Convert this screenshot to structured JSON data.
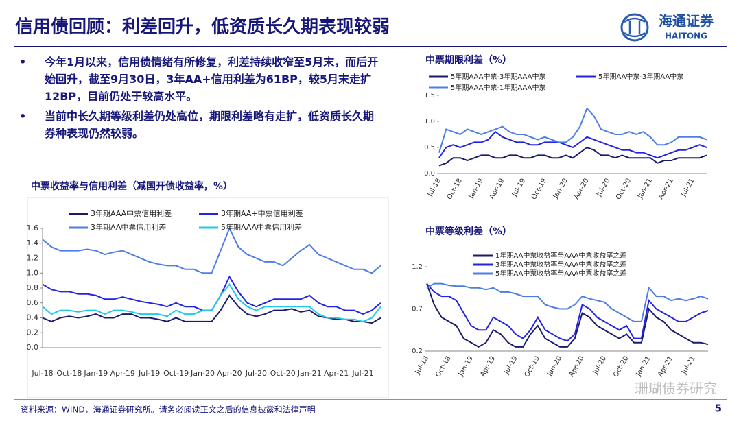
{
  "header": {
    "title": "信用债回顾：利差回升，低资质长久期表现较弱",
    "logo_cn": "海通证券",
    "logo_en": "HAITONG"
  },
  "bullets": [
    "今年1月以来，信用债情绪有所修复，利差持续收窄至5月末，而后开始回升，截至9月30日，3年AA+信用利差为61BP，较5月末走扩12BP，目前仍处于较高水平。",
    "当前中长久期等级利差仍处高位，期限利差略有走扩，低资质长久期券种表现仍然较弱。"
  ],
  "footer": {
    "source": "资料来源：WIND，海通证券研究所。请务必阅读正文之后的信息披露和法律声明",
    "page": "5",
    "watermark": "珊瑚债券研究"
  },
  "chart_data": [
    {
      "type": "line",
      "title": "中票收益率与信用利差（减国开债收益率，%）",
      "categories": [
        "Jul-18",
        null,
        null,
        "Oct-18",
        null,
        null,
        "Jan-19",
        null,
        null,
        "Apr-19",
        null,
        null,
        "Jul-19",
        null,
        null,
        "Oct-19",
        null,
        null,
        "Jan-20",
        null,
        null,
        "Apr-20",
        null,
        null,
        "Jul-20",
        null,
        null,
        "Oct-20",
        null,
        null,
        "Jan-21",
        null,
        null,
        "Apr-21",
        null,
        null,
        "Jul-21",
        null,
        null
      ],
      "ylim": [
        0,
        1.6
      ],
      "yticks": [
        {
          "value": 0,
          "label": "0.0"
        },
        0.2,
        0.4,
        0.6,
        0.8,
        {
          "value": 1,
          "label": "1.0"
        },
        1.2,
        1.4,
        1.6
      ],
      "series": [
        {
          "name": "3年期AAA中票信用利差",
          "color": "#1b1b6b",
          "values": [
            0.4,
            0.35,
            0.4,
            0.42,
            0.4,
            0.42,
            0.45,
            0.4,
            0.4,
            0.45,
            0.45,
            0.4,
            0.4,
            0.38,
            0.35,
            0.4,
            0.35,
            0.35,
            0.35,
            0.35,
            0.5,
            0.7,
            0.55,
            0.45,
            0.42,
            0.45,
            0.5,
            0.5,
            0.52,
            0.48,
            0.5,
            0.42,
            0.4,
            0.38,
            0.38,
            0.35,
            0.35,
            0.33,
            0.4
          ]
        },
        {
          "name": "3年期AA+中票信用利差",
          "color": "#2323e6",
          "values": [
            0.85,
            0.78,
            0.75,
            0.75,
            0.72,
            0.72,
            0.7,
            0.65,
            0.65,
            0.68,
            0.65,
            0.62,
            0.6,
            0.58,
            0.55,
            0.6,
            0.55,
            0.55,
            0.5,
            0.5,
            0.7,
            0.95,
            0.75,
            0.6,
            0.55,
            0.6,
            0.65,
            0.65,
            0.65,
            0.65,
            0.7,
            0.6,
            0.55,
            0.55,
            0.5,
            0.5,
            0.45,
            0.5,
            0.6
          ]
        },
        {
          "name": "3年期AA中票信用利差",
          "color": "#4d7ee8",
          "values": [
            1.45,
            1.35,
            1.3,
            1.3,
            1.3,
            1.32,
            1.3,
            1.25,
            1.28,
            1.3,
            1.25,
            1.2,
            1.15,
            1.12,
            1.1,
            1.1,
            1.05,
            1.05,
            1.0,
            1.0,
            1.3,
            1.6,
            1.35,
            1.25,
            1.2,
            1.15,
            1.15,
            1.1,
            1.2,
            1.3,
            1.38,
            1.25,
            1.2,
            1.15,
            1.1,
            1.05,
            1.05,
            1.0,
            1.1
          ]
        },
        {
          "name": "5年期AAA中票信用利差",
          "color": "#22c8ee",
          "values": [
            0.55,
            0.45,
            0.5,
            0.5,
            0.48,
            0.5,
            0.5,
            0.45,
            0.5,
            0.5,
            0.48,
            0.45,
            0.45,
            0.45,
            0.42,
            0.5,
            0.45,
            0.45,
            0.5,
            0.5,
            0.7,
            0.85,
            0.65,
            0.55,
            0.5,
            0.55,
            0.55,
            0.55,
            0.55,
            0.55,
            0.55,
            0.45,
            0.4,
            0.4,
            0.38,
            0.38,
            0.35,
            0.4,
            0.55
          ]
        }
      ]
    },
    {
      "type": "line",
      "title": "中票期限利差（%）",
      "categories": [
        "Jul-18",
        null,
        null,
        "Oct-18",
        null,
        null,
        "Jan-19",
        null,
        null,
        "Apr-19",
        null,
        null,
        "Jul-19",
        null,
        null,
        "Oct-19",
        null,
        null,
        "Jan-20",
        null,
        null,
        "Apr-20",
        null,
        null,
        "Jul-20",
        null,
        null,
        "Oct-20",
        null,
        null,
        "Jan-21",
        null,
        null,
        "Apr-21",
        null,
        null,
        "Jul-21",
        null,
        null
      ],
      "ylim": [
        0,
        1.5
      ],
      "yticks": [
        {
          "value": 0,
          "label": "0.0"
        },
        0.5,
        {
          "value": 1,
          "label": "1.0"
        },
        1.5
      ],
      "series": [
        {
          "name": "5年期AAA中票-3年期AAA中票",
          "color": "#1b1b6b",
          "values": [
            0.15,
            0.2,
            0.3,
            0.3,
            0.25,
            0.3,
            0.35,
            0.35,
            0.3,
            0.3,
            0.35,
            0.35,
            0.3,
            0.3,
            0.35,
            0.35,
            0.3,
            0.3,
            0.35,
            0.3,
            0.4,
            0.5,
            0.45,
            0.35,
            0.35,
            0.3,
            0.35,
            0.3,
            0.3,
            0.3,
            0.3,
            0.2,
            0.25,
            0.25,
            0.3,
            0.3,
            0.3,
            0.3,
            0.35
          ]
        },
        {
          "name": "5年期AA中票-3年期AA中票",
          "color": "#2323e6",
          "values": [
            0.3,
            0.5,
            0.55,
            0.5,
            0.55,
            0.6,
            0.6,
            0.65,
            0.8,
            0.7,
            0.65,
            0.6,
            0.6,
            0.55,
            0.55,
            0.6,
            0.6,
            0.6,
            0.55,
            0.5,
            0.6,
            0.7,
            0.65,
            0.6,
            0.55,
            0.5,
            0.45,
            0.45,
            0.4,
            0.4,
            0.35,
            0.3,
            0.35,
            0.4,
            0.45,
            0.45,
            0.5,
            0.55,
            0.5
          ]
        },
        {
          "name": "5年期AAA中票-1年期AAA中票",
          "color": "#4d7ee8",
          "values": [
            0.4,
            0.85,
            0.8,
            0.75,
            0.85,
            0.8,
            0.75,
            0.8,
            0.85,
            0.9,
            0.8,
            0.75,
            0.75,
            0.7,
            0.65,
            0.7,
            0.65,
            0.6,
            0.6,
            0.7,
            0.9,
            1.25,
            1.1,
            0.85,
            0.8,
            0.75,
            0.75,
            0.8,
            0.75,
            0.8,
            0.7,
            0.55,
            0.55,
            0.6,
            0.7,
            0.7,
            0.7,
            0.7,
            0.65
          ]
        }
      ]
    },
    {
      "type": "line",
      "title": "中票等级利差（%）",
      "categories": [
        "Jul-18",
        null,
        null,
        "Oct-18",
        null,
        null,
        "Jan-19",
        null,
        null,
        "Apr-19",
        null,
        null,
        "Jul-19",
        null,
        null,
        "Oct-19",
        null,
        null,
        "Jan-20",
        null,
        null,
        "Apr-20",
        null,
        null,
        "Jul-20",
        null,
        null,
        "Oct-20",
        null,
        null,
        "Jan-21",
        null,
        null,
        "Apr-21",
        null,
        null,
        "Jul-21",
        null,
        null
      ],
      "ylim": [
        0.2,
        1.2
      ],
      "yticks": [
        0.2,
        0.7,
        1.2
      ],
      "series": [
        {
          "name": "1年期AA中票收益率与AAA中票收益率之差",
          "color": "#1b1b6b",
          "values": [
            1.0,
            0.75,
            0.6,
            0.55,
            0.5,
            0.35,
            0.3,
            0.25,
            0.3,
            0.45,
            0.4,
            0.3,
            0.25,
            0.25,
            0.4,
            0.5,
            0.35,
            0.3,
            0.25,
            0.25,
            0.35,
            0.65,
            0.6,
            0.5,
            0.45,
            0.4,
            0.35,
            0.4,
            0.3,
            0.3,
            0.7,
            0.6,
            0.55,
            0.45,
            0.4,
            0.35,
            0.3,
            0.3,
            0.28
          ]
        },
        {
          "name": "3年期AA中票收益率与AAA中票收益率之差",
          "color": "#2323e6",
          "values": [
            1.0,
            0.9,
            0.85,
            0.85,
            0.8,
            0.65,
            0.5,
            0.45,
            0.45,
            0.6,
            0.55,
            0.5,
            0.4,
            0.35,
            0.45,
            0.6,
            0.45,
            0.4,
            0.35,
            0.32,
            0.4,
            0.75,
            0.7,
            0.6,
            0.55,
            0.5,
            0.45,
            0.5,
            0.35,
            0.35,
            0.8,
            0.7,
            0.65,
            0.6,
            0.55,
            0.55,
            0.6,
            0.65,
            0.68
          ]
        },
        {
          "name": "5年期AA中票收益率与AAA中票收益率之差",
          "color": "#4d7ee8",
          "values": [
            0.95,
            1.0,
            1.0,
            0.98,
            0.97,
            0.97,
            0.95,
            0.95,
            0.93,
            0.95,
            0.9,
            0.9,
            0.88,
            0.85,
            0.85,
            0.85,
            0.75,
            0.72,
            0.7,
            0.7,
            0.75,
            0.85,
            0.82,
            0.8,
            0.78,
            0.7,
            0.65,
            0.6,
            0.55,
            0.55,
            0.95,
            0.85,
            0.85,
            0.8,
            0.82,
            0.8,
            0.82,
            0.85,
            0.82
          ]
        }
      ]
    }
  ]
}
